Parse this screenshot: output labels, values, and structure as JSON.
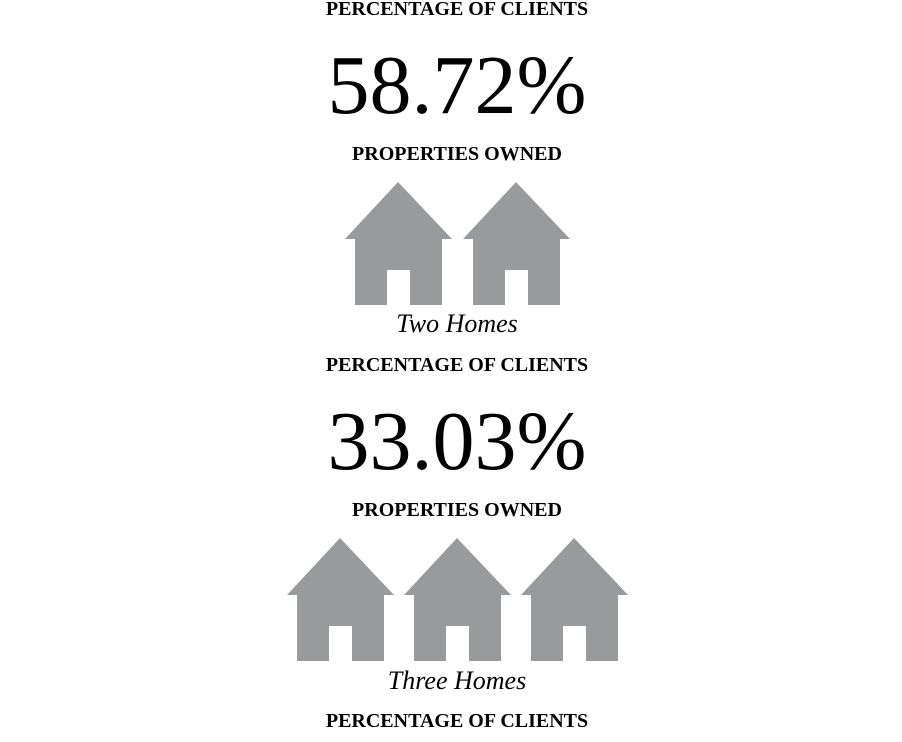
{
  "sections": [
    {
      "header": "PERCENTAGE OF CLIENTS",
      "percentage": "58.72%",
      "subheader": "PROPERTIES OWNED",
      "caption": "Two Homes"
    },
    {
      "header": "PERCENTAGE OF CLIENTS",
      "percentage": "33.03%",
      "subheader": "PROPERTIES OWNED",
      "caption": "Three Homes"
    },
    {
      "header": "PERCENTAGE OF CLIENTS"
    }
  ]
}
